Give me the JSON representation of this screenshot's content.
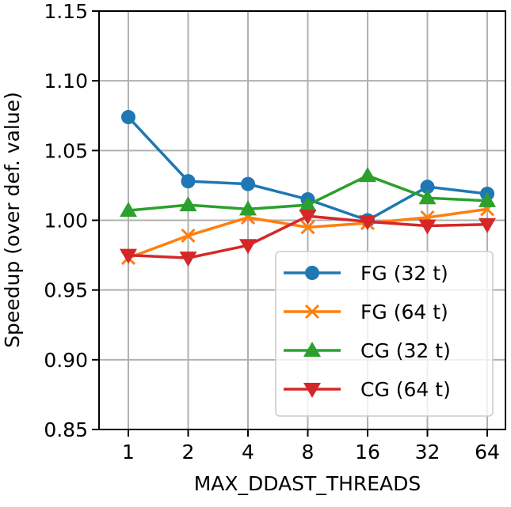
{
  "chart_data": {
    "type": "line",
    "title": "",
    "xlabel": "MAX_DDAST_THREADS",
    "ylabel": "Speedup (over def. value)",
    "categories": [
      "1",
      "2",
      "4",
      "8",
      "16",
      "32",
      "64"
    ],
    "ylim": [
      0.85,
      1.15
    ],
    "yticks": [
      "0.85",
      "0.90",
      "0.95",
      "1.00",
      "1.05",
      "1.10",
      "1.15"
    ],
    "grid": true,
    "legend_position": "lower-right",
    "series": [
      {
        "name": "FG (32 t)",
        "color": "#1f77b4",
        "marker": "circle",
        "values": [
          1.074,
          1.028,
          1.026,
          1.015,
          1.0,
          1.024,
          1.019
        ]
      },
      {
        "name": "FG (64 t)",
        "color": "#ff7f0e",
        "marker": "x",
        "values": [
          0.973,
          0.989,
          1.002,
          0.995,
          0.998,
          1.002,
          1.008
        ]
      },
      {
        "name": "CG (32 t)",
        "color": "#2ca02c",
        "marker": "triangle-up",
        "values": [
          1.007,
          1.011,
          1.008,
          1.011,
          1.032,
          1.016,
          1.014
        ]
      },
      {
        "name": "CG (64 t)",
        "color": "#d62728",
        "marker": "triangle-down",
        "values": [
          0.975,
          0.973,
          0.982,
          1.003,
          0.999,
          0.996,
          0.997
        ]
      }
    ]
  }
}
